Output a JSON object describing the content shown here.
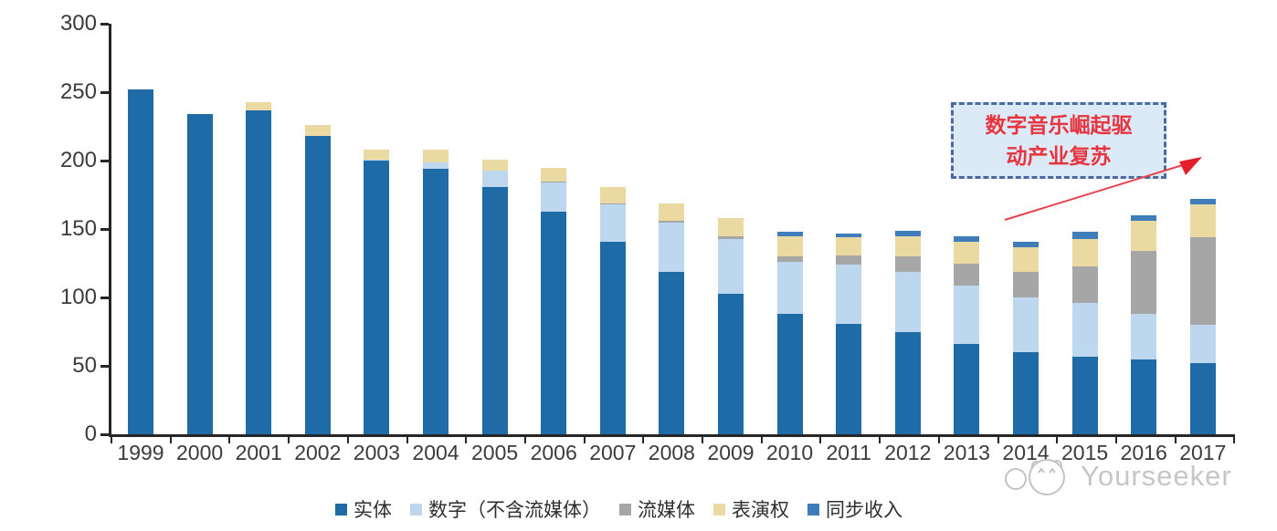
{
  "chart_data": {
    "type": "bar",
    "stacked": true,
    "title": "",
    "xlabel": "",
    "ylabel": "",
    "categories": [
      "1999",
      "2000",
      "2001",
      "2002",
      "2003",
      "2004",
      "2005",
      "2006",
      "2007",
      "2008",
      "2009",
      "2010",
      "2011",
      "2012",
      "2013",
      "2014",
      "2015",
      "2016",
      "2017"
    ],
    "series": [
      {
        "name": "实体",
        "color": "#1f6ba8",
        "values": [
          252,
          234,
          237,
          218,
          200,
          194,
          181,
          163,
          141,
          119,
          103,
          88,
          81,
          75,
          66,
          60,
          57,
          55,
          52
        ]
      },
      {
        "name": "数字（不含流媒体）",
        "color": "#bdd7ee",
        "values": [
          0,
          0,
          0,
          0,
          1,
          5,
          12,
          21,
          27,
          36,
          40,
          38,
          43,
          44,
          43,
          40,
          39,
          33,
          28
        ]
      },
      {
        "name": "流媒体",
        "color": "#a6a6a6",
        "values": [
          0,
          0,
          0,
          0,
          0,
          0,
          0,
          1,
          1,
          1,
          2,
          4,
          7,
          11,
          16,
          19,
          27,
          46,
          64
        ]
      },
      {
        "name": "表演权",
        "color": "#ead9a0",
        "values": [
          0,
          0,
          6,
          8,
          7,
          9,
          8,
          10,
          12,
          13,
          13,
          15,
          13,
          15,
          16,
          18,
          20,
          22,
          24
        ]
      },
      {
        "name": "同步收入",
        "color": "#3e7cba",
        "values": [
          0,
          0,
          0,
          0,
          0,
          0,
          0,
          0,
          0,
          0,
          0,
          3,
          3,
          4,
          4,
          4,
          5,
          4,
          4
        ]
      }
    ],
    "ylim": [
      0,
      300
    ],
    "yticks": [
      0,
      50,
      100,
      150,
      200,
      250,
      300
    ],
    "grid": false,
    "legend_position": "bottom"
  },
  "annotation": {
    "line1": "数字音乐崛起驱",
    "line2": "动产业复苏",
    "text_color": "#e6353f",
    "box_fill": "#dce9f7",
    "border_color": "#4a6ba1",
    "arrow_color": "#e8414b"
  },
  "watermark": {
    "text": "Yourseeker"
  },
  "colors": {
    "axis": "#262626",
    "tick_label": "#3b3b3b",
    "background": "#ffffff",
    "watermark_gray": "#c6c6c6"
  }
}
